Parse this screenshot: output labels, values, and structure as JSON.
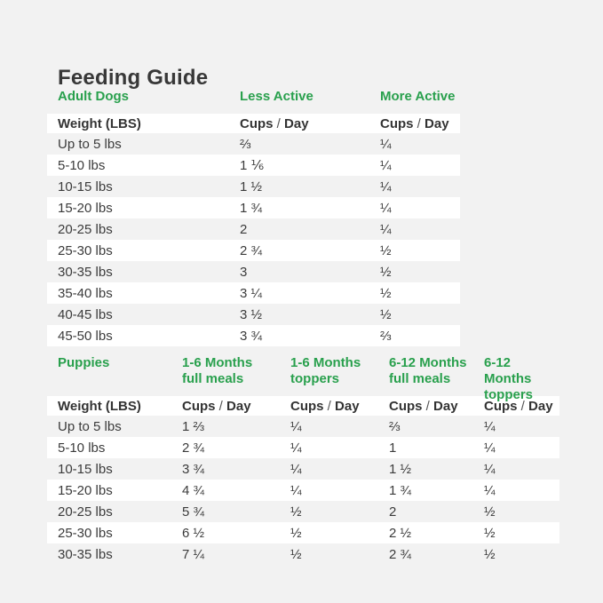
{
  "page": {
    "title": "Feeding Guide",
    "background_color": "#f2f2f2",
    "stripe_color": "#ffffff",
    "accent_green": "#29a04d",
    "text_color": "#3b3b3b"
  },
  "tables": [
    {
      "name": "adult-dogs",
      "header": [
        "Adult Dogs",
        "Less Active",
        "More Active"
      ],
      "subheader": [
        "Weight (LBS)",
        "Cups / Day",
        "Cups / Day"
      ],
      "rows": [
        [
          "Up to 5 lbs",
          "⅔",
          "¼"
        ],
        [
          "5-10 lbs",
          "1 ⅙",
          "¼"
        ],
        [
          "10-15 lbs",
          "1 ½",
          "¼"
        ],
        [
          "15-20 lbs",
          "1 ¾",
          "¼"
        ],
        [
          "20-25 lbs",
          "2",
          "¼"
        ],
        [
          "25-30 lbs",
          "2 ¾",
          "½"
        ],
        [
          "30-35 lbs",
          "3",
          "½"
        ],
        [
          "35-40 lbs",
          "3 ¼",
          "½"
        ],
        [
          "40-45 lbs",
          "3 ½",
          "½"
        ],
        [
          "45-50 lbs",
          "3 ¾",
          "⅔"
        ]
      ]
    },
    {
      "name": "puppies",
      "header": [
        "Puppies",
        "1-6 Months\nfull meals",
        "1-6 Months\ntoppers",
        "6-12 Months\nfull meals",
        "6-12 Months\ntoppers"
      ],
      "subheader": [
        "Weight (LBS)",
        "Cups / Day",
        "Cups / Day",
        "Cups / Day",
        "Cups / Day"
      ],
      "rows": [
        [
          "Up to 5 lbs",
          "1 ⅔",
          "¼",
          "⅔",
          "¼"
        ],
        [
          "5-10 lbs",
          "2 ¾",
          "¼",
          "1",
          "¼"
        ],
        [
          "10-15 lbs",
          "3 ¾",
          "¼",
          "1 ½",
          "¼"
        ],
        [
          "15-20 lbs",
          "4 ¾",
          "¼",
          "1 ¾",
          "¼"
        ],
        [
          "20-25 lbs",
          "5 ¾",
          "½",
          "2",
          "½"
        ],
        [
          "25-30 lbs",
          "6 ½",
          "½",
          "2 ½",
          "½"
        ],
        [
          "30-35 lbs",
          "7 ¼",
          "½",
          "2 ¾",
          "½"
        ]
      ]
    }
  ]
}
